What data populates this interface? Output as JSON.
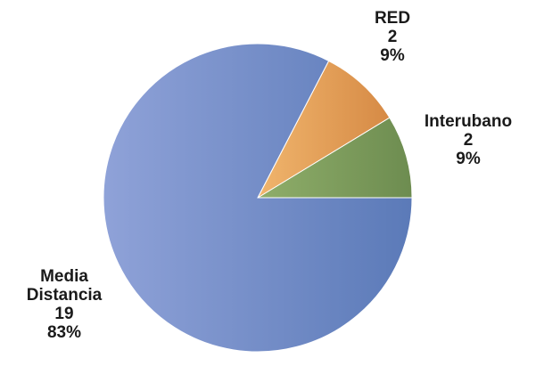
{
  "chart_data": {
    "type": "pie",
    "title": "",
    "slices": [
      {
        "label": "Interurbano",
        "value": 2,
        "percent": "9%",
        "color_light": "#8fae6a",
        "color_dark": "#6d8c50"
      },
      {
        "label": "RED",
        "value": 2,
        "percent": "9%",
        "color_light": "#f0b56d",
        "color_dark": "#d68a45"
      },
      {
        "label": "Media Distancia",
        "value": 19,
        "percent": "83%",
        "color_light": "#8fa2d8",
        "color_dark": "#5b7ab8"
      }
    ],
    "label_lines": [
      [
        "Interubano",
        "2",
        "9%"
      ],
      [
        "RED",
        "2",
        "9%"
      ],
      [
        "Media",
        "Distancia",
        "19",
        "83%"
      ]
    ],
    "legend": "none"
  }
}
